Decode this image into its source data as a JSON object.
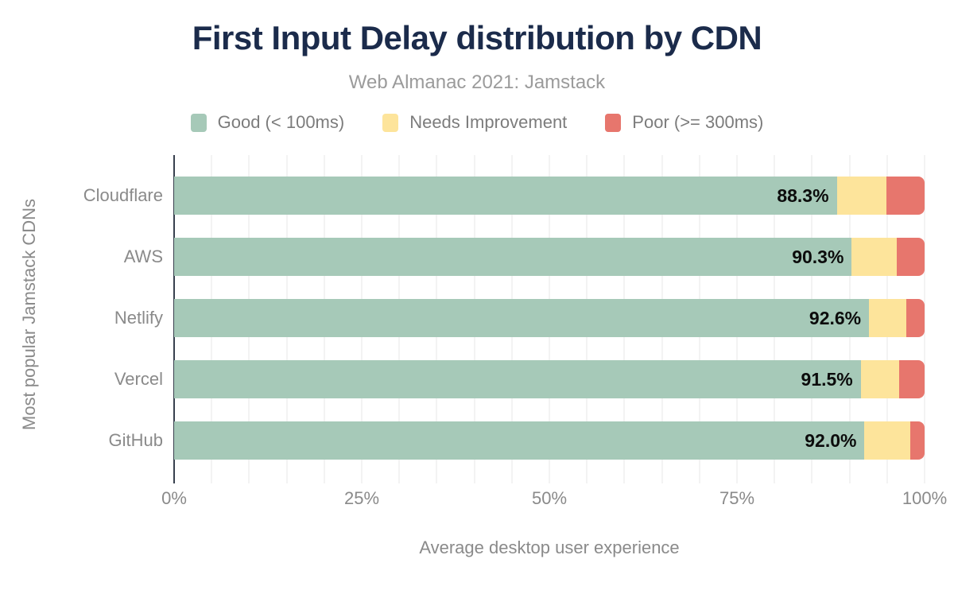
{
  "chart_data": {
    "type": "bar",
    "orientation": "horizontal-stacked",
    "title": "First Input Delay distribution by CDN",
    "subtitle": "Web Almanac 2021: Jamstack",
    "xlabel": "Average desktop user experience",
    "ylabel": "Most popular Jamstack CDNs",
    "categories": [
      "Cloudflare",
      "AWS",
      "Netlify",
      "Vercel",
      "GitHub"
    ],
    "series": [
      {
        "name": "Good (< 100ms)",
        "color": "#a6c9b8",
        "values": [
          88.3,
          90.3,
          92.6,
          91.5,
          92.0
        ]
      },
      {
        "name": "Needs Improvement",
        "color": "#fde49b",
        "values": [
          6.6,
          6.0,
          5.0,
          5.1,
          6.1
        ]
      },
      {
        "name": "Poor (>= 300ms)",
        "color": "#e7766d",
        "values": [
          5.1,
          3.7,
          2.4,
          3.4,
          1.9
        ]
      }
    ],
    "bar_labels": [
      "88.3%",
      "90.3%",
      "92.6%",
      "91.5%",
      "92.0%"
    ],
    "x_ticks": [
      "0%",
      "25%",
      "50%",
      "75%",
      "100%"
    ],
    "xlim": [
      0,
      100
    ],
    "gridline_step": 5,
    "legend_position": "top",
    "grid": "vertical-light",
    "colors": {
      "title": "#1b2b4b",
      "subtitle": "#9b9b9b",
      "axis_text": "#8a8a8a",
      "axis_line": "#38404e",
      "gridline": "#f3f3f3",
      "bar_label": "#0c0c0c"
    }
  }
}
